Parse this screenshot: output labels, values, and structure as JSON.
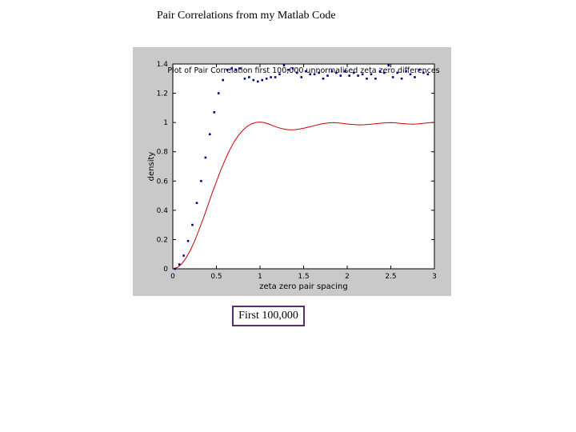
{
  "slide": {
    "title": "Pair Correlations from my Matlab Code",
    "caption": "First 100,000"
  },
  "chart_data": {
    "type": "scatter",
    "title": "Plot of Pair Correlation first 100,000 unnormalised zeta zero differences",
    "xlabel": "zeta zero pair spacing",
    "ylabel": "density",
    "xlim": [
      0,
      3
    ],
    "ylim": [
      0,
      1.4
    ],
    "xticks": [
      0,
      0.5,
      1,
      1.5,
      2,
      2.5,
      3
    ],
    "yticks": [
      0,
      0.2,
      0.4,
      0.6,
      0.8,
      1,
      1.2,
      1.4
    ],
    "xtick_labels": [
      "0",
      "0.5",
      "1",
      "1.5",
      "2",
      "2.5",
      "3"
    ],
    "ytick_labels": [
      "0",
      "0.2",
      "0.4",
      "0.6",
      "0.8",
      "1",
      "1.2",
      "1.4"
    ],
    "grid": false,
    "colors": {
      "points": "#00008b",
      "curve": "#cc0000",
      "axes_bg": "#ffffff",
      "frame_bg": "#c9c9c9"
    },
    "series": [
      {
        "kind": "points",
        "x": [
          0.025,
          0.075,
          0.125,
          0.175,
          0.225,
          0.275,
          0.325,
          0.375,
          0.425,
          0.475,
          0.525,
          0.575,
          0.625,
          0.675,
          0.725,
          0.775,
          0.825,
          0.875,
          0.925,
          0.975,
          1.025,
          1.075,
          1.125,
          1.175,
          1.225,
          1.275,
          1.325,
          1.375,
          1.425,
          1.475,
          1.525,
          1.575,
          1.625,
          1.675,
          1.725,
          1.775,
          1.825,
          1.875,
          1.925,
          1.975,
          2.025,
          2.075,
          2.125,
          2.175,
          2.225,
          2.275,
          2.325,
          2.375,
          2.425,
          2.475,
          2.525,
          2.575,
          2.625,
          2.675,
          2.725,
          2.775,
          2.825,
          2.875,
          2.925
        ],
        "y": [
          0.0,
          0.03,
          0.09,
          0.19,
          0.3,
          0.45,
          0.6,
          0.76,
          0.92,
          1.07,
          1.2,
          1.29,
          1.36,
          1.37,
          1.36,
          1.37,
          1.3,
          1.31,
          1.29,
          1.28,
          1.29,
          1.3,
          1.31,
          1.31,
          1.33,
          1.39,
          1.36,
          1.37,
          1.34,
          1.31,
          1.35,
          1.33,
          1.33,
          1.34,
          1.3,
          1.32,
          1.35,
          1.34,
          1.32,
          1.35,
          1.32,
          1.34,
          1.32,
          1.33,
          1.3,
          1.33,
          1.3,
          1.35,
          1.34,
          1.39,
          1.31,
          1.34,
          1.3,
          1.35,
          1.33,
          1.31,
          1.36,
          1.34,
          1.33
        ]
      },
      {
        "kind": "line",
        "x": [
          0,
          0.05,
          0.1,
          0.15,
          0.2,
          0.25,
          0.3,
          0.35,
          0.4,
          0.45,
          0.5,
          0.55,
          0.6,
          0.65,
          0.7,
          0.75,
          0.8,
          0.85,
          0.9,
          0.95,
          1.0,
          1.05,
          1.1,
          1.15,
          1.2,
          1.25,
          1.3,
          1.35,
          1.4,
          1.45,
          1.5,
          1.55,
          1.6,
          1.65,
          1.7,
          1.75,
          1.8,
          1.85,
          1.9,
          1.95,
          2.0,
          2.05,
          2.1,
          2.15,
          2.2,
          2.25,
          2.3,
          2.35,
          2.4,
          2.45,
          2.5,
          2.55,
          2.6,
          2.65,
          2.7,
          2.75,
          2.8,
          2.85,
          2.9,
          2.95,
          3.0
        ],
        "y": [
          0.0,
          0.008,
          0.032,
          0.072,
          0.125,
          0.19,
          0.265,
          0.345,
          0.43,
          0.515,
          0.595,
          0.675,
          0.745,
          0.81,
          0.865,
          0.91,
          0.945,
          0.972,
          0.99,
          1.0,
          1.003,
          0.999,
          0.99,
          0.978,
          0.967,
          0.958,
          0.952,
          0.95,
          0.951,
          0.955,
          0.961,
          0.968,
          0.975,
          0.983,
          0.99,
          0.995,
          0.998,
          0.999,
          0.997,
          0.994,
          0.99,
          0.987,
          0.985,
          0.984,
          0.985,
          0.987,
          0.99,
          0.993,
          0.996,
          0.998,
          0.999,
          0.998,
          0.995,
          0.992,
          0.99,
          0.989,
          0.99,
          0.993,
          0.996,
          0.999,
          1.0
        ]
      }
    ]
  }
}
